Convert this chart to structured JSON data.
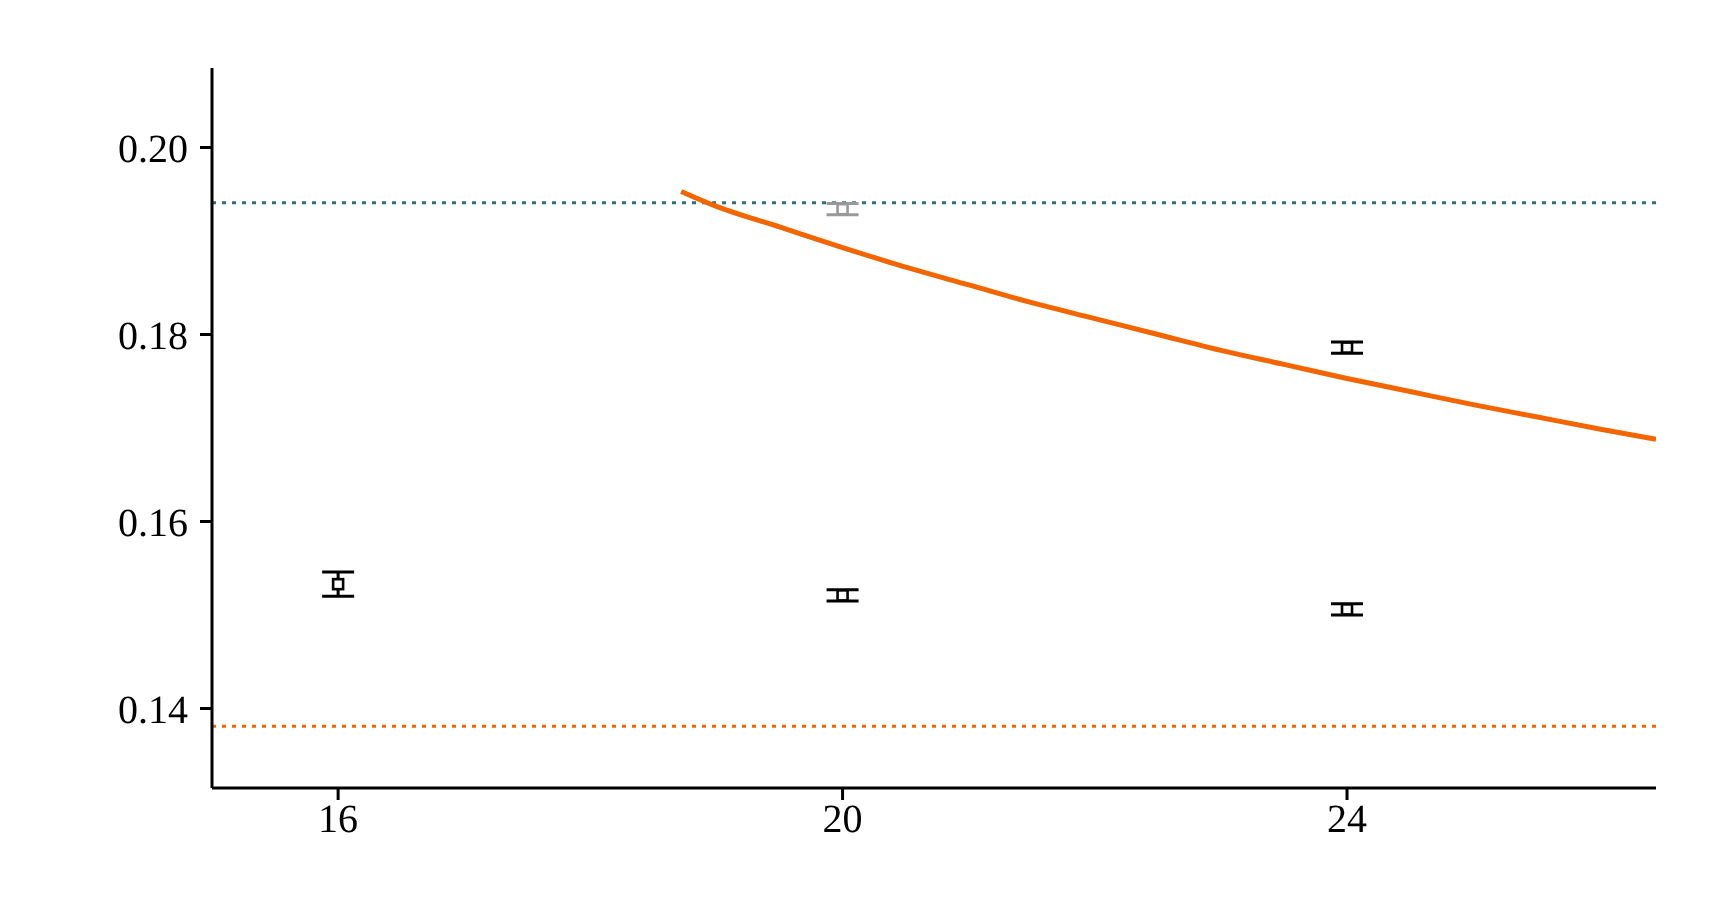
{
  "chart_data": {
    "type": "scatter",
    "xlim": [
      15,
      26.45
    ],
    "xticks": [
      16,
      20,
      24
    ],
    "ylim": [
      0.1315,
      0.2085
    ],
    "yticks": [
      {
        "value": 0.14,
        "label": "0.14"
      },
      {
        "value": 0.16,
        "label": "0.16"
      },
      {
        "value": 0.18,
        "label": "0.18"
      },
      {
        "value": 0.2,
        "label": "0.20"
      }
    ],
    "grid": false,
    "legend": false,
    "marker": "square",
    "series": [
      {
        "color": "#000000",
        "x": [
          16,
          20,
          24,
          24
        ],
        "values": [
          0.1533,
          0.1521,
          0.1506,
          0.1786
        ],
        "errors": [
          0.0013,
          0.0006,
          0.0006,
          0.0006
        ]
      },
      {
        "color": "#999999",
        "x": [
          20
        ],
        "values": [
          0.1934
        ],
        "errors": [
          0.0006
        ]
      },
      {
        "type": "line",
        "color": "#f26500",
        "marker": "none",
        "line_style": "solid",
        "x": [
          18.72,
          19,
          19.5,
          20,
          20.5,
          21,
          21.5,
          22,
          22.5,
          23,
          23.5,
          24,
          24.5,
          25,
          25.5,
          26,
          26.45
        ],
        "values": [
          0.1953,
          0.1937,
          0.1915,
          0.1893,
          0.1872,
          0.1853,
          0.1834,
          0.1817,
          0.18,
          0.1783,
          0.1768,
          0.1753,
          0.1739,
          0.1725,
          0.1712,
          0.1699,
          0.1688
        ]
      }
    ],
    "ref_lines": [
      {
        "axis": "y",
        "value": 0.1941,
        "color": "#2e6f78",
        "line_style": "dotted"
      },
      {
        "axis": "y",
        "value": 0.1381,
        "color": "#f26500",
        "line_style": "dotted"
      }
    ]
  }
}
